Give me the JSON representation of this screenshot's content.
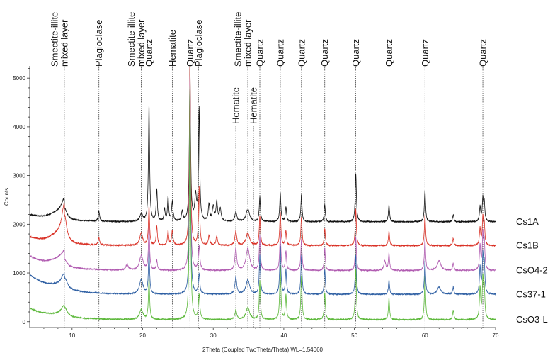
{
  "chart_data": {
    "type": "line",
    "title": "",
    "xlabel": "2Theta (Coupled TwoTheta/Theta) WL=1.54060",
    "ylabel": "Counts",
    "xlim": [
      4,
      70
    ],
    "ylim": [
      -120,
      5250
    ],
    "x_ticks": [
      10,
      20,
      30,
      40,
      50,
      60,
      70
    ],
    "y_ticks": [
      0,
      1000,
      2000,
      3000,
      4000,
      5000
    ],
    "grid": false,
    "legend": "labels at right end of each trace",
    "series": [
      {
        "name": "Cs1A",
        "color": "#111111",
        "offset": 2050,
        "noise": 28,
        "left_boost": [
          [
            3.5,
            150
          ],
          [
            8.9,
            480,
            0.5
          ]
        ],
        "peaks": [
          [
            8.9,
            250,
            0.45
          ],
          [
            13.8,
            200,
            0.12
          ],
          [
            19.8,
            150,
            0.25
          ],
          [
            20.9,
            2400,
            0.1
          ],
          [
            22.0,
            650,
            0.1
          ],
          [
            23.1,
            250,
            0.1
          ],
          [
            23.6,
            500,
            0.1
          ],
          [
            24.2,
            400,
            0.12
          ],
          [
            25.6,
            200,
            0.12
          ],
          [
            26.7,
            3200,
            0.1
          ],
          [
            27.5,
            500,
            0.14
          ],
          [
            28.0,
            2300,
            0.1
          ],
          [
            29.4,
            350,
            0.12
          ],
          [
            30.0,
            300,
            0.15
          ],
          [
            30.5,
            400,
            0.12
          ],
          [
            31.0,
            250,
            0.15
          ],
          [
            33.2,
            200,
            0.15
          ],
          [
            34.9,
            250,
            0.3
          ],
          [
            36.6,
            500,
            0.1
          ],
          [
            39.5,
            600,
            0.1
          ],
          [
            40.3,
            300,
            0.1
          ],
          [
            42.5,
            550,
            0.1
          ],
          [
            45.8,
            350,
            0.1
          ],
          [
            50.2,
            1000,
            0.1
          ],
          [
            54.9,
            350,
            0.1
          ],
          [
            60.0,
            650,
            0.1
          ],
          [
            64.0,
            150,
            0.1
          ],
          [
            67.8,
            300,
            0.1
          ],
          [
            68.2,
            450,
            0.1
          ],
          [
            68.4,
            380,
            0.1
          ]
        ]
      },
      {
        "name": "Cs1B",
        "color": "#d93025",
        "offset": 1560,
        "noise": 28,
        "left_boost": [
          [
            3.5,
            180
          ],
          [
            8.9,
            560,
            0.5
          ]
        ],
        "peaks": [
          [
            8.9,
            600,
            0.4
          ],
          [
            13.8,
            150,
            0.12
          ],
          [
            19.8,
            250,
            0.25
          ],
          [
            20.9,
            800,
            0.1
          ],
          [
            22.0,
            400,
            0.1
          ],
          [
            23.6,
            300,
            0.1
          ],
          [
            24.2,
            300,
            0.12
          ],
          [
            26.7,
            3800,
            0.1
          ],
          [
            28.0,
            1200,
            0.1
          ],
          [
            29.4,
            200,
            0.12
          ],
          [
            30.5,
            200,
            0.12
          ],
          [
            33.2,
            300,
            0.15
          ],
          [
            34.9,
            250,
            0.3
          ],
          [
            36.6,
            600,
            0.1
          ],
          [
            39.5,
            700,
            0.1
          ],
          [
            40.3,
            300,
            0.1
          ],
          [
            42.5,
            600,
            0.1
          ],
          [
            45.8,
            350,
            0.1
          ],
          [
            50.2,
            750,
            0.1
          ],
          [
            54.9,
            300,
            0.1
          ],
          [
            60.0,
            650,
            0.1
          ],
          [
            64.0,
            150,
            0.1
          ],
          [
            67.8,
            350,
            0.1
          ],
          [
            68.2,
            550,
            0.1
          ],
          [
            68.4,
            400,
            0.1
          ]
        ]
      },
      {
        "name": "CsO4-2",
        "color": "#b05ab0",
        "offset": 1050,
        "noise": 26,
        "left_boost": [
          [
            3.5,
            300
          ],
          [
            8.9,
            450,
            0.5
          ]
        ],
        "peaks": [
          [
            8.9,
            150,
            0.5
          ],
          [
            17.8,
            120,
            0.2
          ],
          [
            19.8,
            300,
            0.3
          ],
          [
            20.9,
            900,
            0.1
          ],
          [
            22.0,
            200,
            0.1
          ],
          [
            26.7,
            4000,
            0.1
          ],
          [
            28.0,
            500,
            0.12
          ],
          [
            33.2,
            450,
            0.15
          ],
          [
            34.9,
            450,
            0.3
          ],
          [
            36.6,
            700,
            0.1
          ],
          [
            39.5,
            800,
            0.1
          ],
          [
            40.3,
            400,
            0.1
          ],
          [
            42.5,
            650,
            0.1
          ],
          [
            45.8,
            450,
            0.1
          ],
          [
            50.2,
            700,
            0.1
          ],
          [
            54.3,
            200,
            0.15
          ],
          [
            54.9,
            350,
            0.1
          ],
          [
            60.0,
            650,
            0.1
          ],
          [
            62.0,
            200,
            0.3
          ],
          [
            64.0,
            150,
            0.1
          ],
          [
            67.8,
            500,
            0.1
          ],
          [
            68.2,
            700,
            0.1
          ],
          [
            68.4,
            550,
            0.1
          ]
        ]
      },
      {
        "name": "Cs37-1",
        "color": "#2e5fa3",
        "offset": 560,
        "noise": 26,
        "left_boost": [
          [
            3.5,
            400
          ],
          [
            8.9,
            200,
            0.5
          ]
        ],
        "peaks": [
          [
            8.9,
            250,
            0.5
          ],
          [
            19.8,
            300,
            0.3
          ],
          [
            20.9,
            900,
            0.1
          ],
          [
            26.7,
            4100,
            0.1
          ],
          [
            28.0,
            400,
            0.12
          ],
          [
            33.2,
            350,
            0.15
          ],
          [
            34.9,
            300,
            0.3
          ],
          [
            36.6,
            800,
            0.1
          ],
          [
            39.5,
            1000,
            0.1
          ],
          [
            40.3,
            500,
            0.1
          ],
          [
            42.5,
            800,
            0.1
          ],
          [
            45.8,
            500,
            0.1
          ],
          [
            50.2,
            800,
            0.1
          ],
          [
            54.9,
            300,
            0.1
          ],
          [
            60.0,
            700,
            0.1
          ],
          [
            62.0,
            150,
            0.3
          ],
          [
            64.0,
            150,
            0.1
          ],
          [
            67.8,
            550,
            0.1
          ],
          [
            68.2,
            750,
            0.1
          ],
          [
            68.4,
            600,
            0.1
          ]
        ]
      },
      {
        "name": "CsO3-L",
        "color": "#5cb83a",
        "offset": 40,
        "noise": 26,
        "left_boost": [
          [
            3.5,
            230
          ],
          [
            8.9,
            110,
            0.5
          ]
        ],
        "peaks": [
          [
            8.9,
            200,
            0.5
          ],
          [
            19.8,
            200,
            0.3
          ],
          [
            20.9,
            850,
            0.1
          ],
          [
            26.7,
            4800,
            0.1
          ],
          [
            28.0,
            500,
            0.12
          ],
          [
            33.2,
            200,
            0.15
          ],
          [
            34.9,
            250,
            0.3
          ],
          [
            36.6,
            800,
            0.1
          ],
          [
            39.5,
            1100,
            0.1
          ],
          [
            40.3,
            500,
            0.1
          ],
          [
            42.5,
            900,
            0.1
          ],
          [
            45.8,
            550,
            0.1
          ],
          [
            50.2,
            1050,
            0.1
          ],
          [
            54.9,
            450,
            0.1
          ],
          [
            60.0,
            900,
            0.1
          ],
          [
            64.0,
            200,
            0.1
          ],
          [
            67.8,
            650,
            0.1
          ],
          [
            68.2,
            800,
            0.1
          ],
          [
            68.4,
            600,
            0.1
          ]
        ]
      }
    ],
    "reference_lines": [
      {
        "x": 8.9,
        "labels": [
          "Smectite-illite",
          "mixed layer"
        ],
        "row": "top"
      },
      {
        "x": 13.8,
        "labels": [
          "Plagioclase"
        ],
        "row": "top"
      },
      {
        "x": 19.8,
        "labels": [
          "Smectite-illite",
          "mixed layer"
        ],
        "row": "top"
      },
      {
        "x": 20.9,
        "labels": [
          "Quartz"
        ],
        "row": "top"
      },
      {
        "x": 24.2,
        "labels": [
          "Hematite"
        ],
        "row": "top"
      },
      {
        "x": 26.7,
        "labels": [
          "Quartz"
        ],
        "row": "top"
      },
      {
        "x": 27.9,
        "labels": [
          "Plagioclase"
        ],
        "row": "top"
      },
      {
        "x": 33.2,
        "labels": [
          "Hematite"
        ],
        "row": "low"
      },
      {
        "x": 34.9,
        "labels": [
          "Smectite-illite",
          "mixed layer"
        ],
        "row": "top"
      },
      {
        "x": 35.7,
        "labels": [
          "Hematite"
        ],
        "row": "low"
      },
      {
        "x": 36.6,
        "labels": [
          "Quartz"
        ],
        "row": "top"
      },
      {
        "x": 39.5,
        "labels": [
          "Quartz"
        ],
        "row": "top"
      },
      {
        "x": 42.5,
        "labels": [
          "Quartz"
        ],
        "row": "top"
      },
      {
        "x": 45.8,
        "labels": [
          "Quartz"
        ],
        "row": "top"
      },
      {
        "x": 50.2,
        "labels": [
          "Quartz"
        ],
        "row": "top"
      },
      {
        "x": 54.9,
        "labels": [
          "Quartz"
        ],
        "row": "top"
      },
      {
        "x": 60.0,
        "labels": [
          "Quartz"
        ],
        "row": "top"
      },
      {
        "x": 68.2,
        "labels": [
          "Quartz"
        ],
        "row": "top"
      }
    ]
  }
}
